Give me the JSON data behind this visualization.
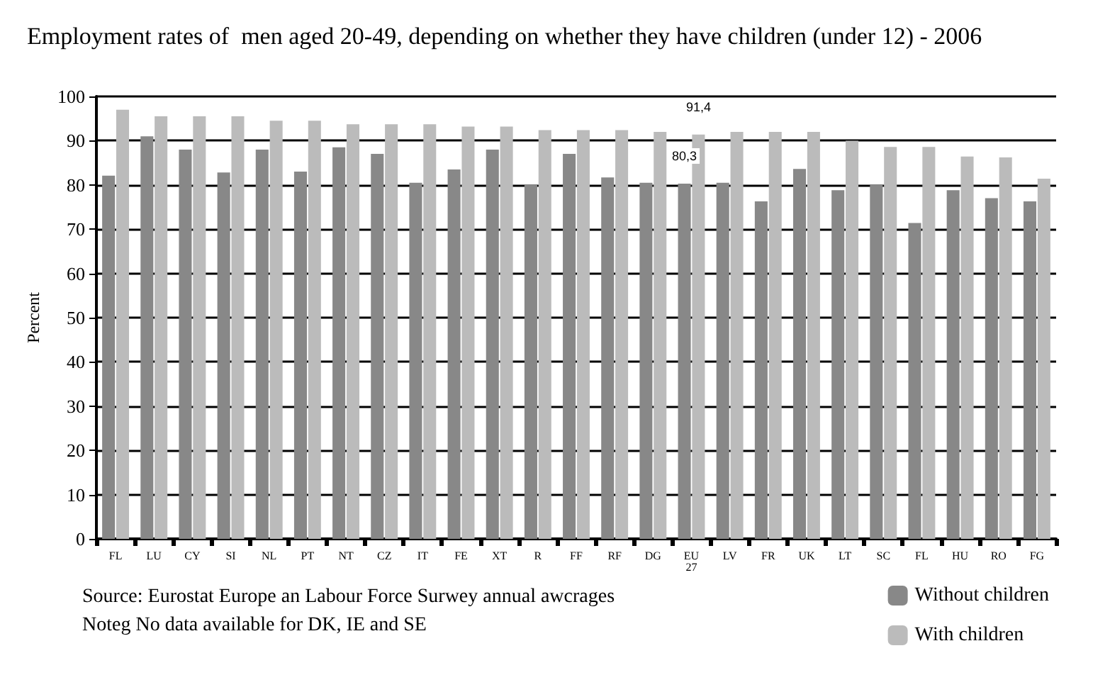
{
  "chart_data": {
    "type": "bar",
    "title": "Employment rates of  men aged 20-49, depending on whether they have children (under 12) - 2006",
    "ylabel": "Percent",
    "categories": [
      "FL",
      "LU",
      "CY",
      "SI",
      "NL",
      "PT",
      "NT",
      "CZ",
      "IT",
      "FE",
      "XT",
      "R",
      "FF",
      "RF",
      "DG",
      "EU 27",
      "LV",
      "FR",
      "UK",
      "LT",
      "SC",
      "FL",
      "HU",
      "RO",
      "FG"
    ],
    "series": [
      {
        "name": "Without children",
        "color": "#888888",
        "values": [
          82.1,
          91,
          88,
          82.8,
          88,
          83,
          88.5,
          87,
          80.5,
          83.5,
          88,
          80,
          87,
          81.7,
          80.5,
          80.3,
          80.5,
          76.3,
          83.6,
          78.8,
          80,
          71.4,
          78.8,
          77,
          76.3
        ],
        "value_labels": [
          null,
          null,
          null,
          null,
          null,
          null,
          null,
          null,
          null,
          null,
          null,
          null,
          null,
          null,
          null,
          "80,3",
          null,
          null,
          null,
          null,
          null,
          null,
          null,
          null,
          null
        ]
      },
      {
        "name": "With children",
        "color": "#bbbbbb",
        "values": [
          97,
          95.5,
          95.5,
          95.5,
          94.5,
          94.5,
          93.7,
          93.7,
          93.7,
          93.2,
          93.2,
          92.4,
          92.4,
          92.4,
          92,
          91.4,
          92,
          92,
          92,
          90,
          88.6,
          88.6,
          86.4,
          86.2,
          81.4
        ],
        "value_labels": [
          null,
          null,
          null,
          null,
          null,
          null,
          null,
          null,
          null,
          null,
          null,
          null,
          null,
          null,
          null,
          "91,4",
          null,
          null,
          null,
          null,
          null,
          null,
          null,
          null,
          null
        ]
      }
    ],
    "ylim": [
      0,
      100
    ],
    "yticks": [
      0,
      10,
      20,
      30,
      40,
      50,
      60,
      70,
      80,
      90,
      100
    ],
    "grid": "y",
    "legend": "bottom right",
    "annotations": [
      "Source: Eurostat Europe an Labour Force Surwey annual awcrages",
      "Noteg No data available for DK, IE and SE"
    ]
  }
}
